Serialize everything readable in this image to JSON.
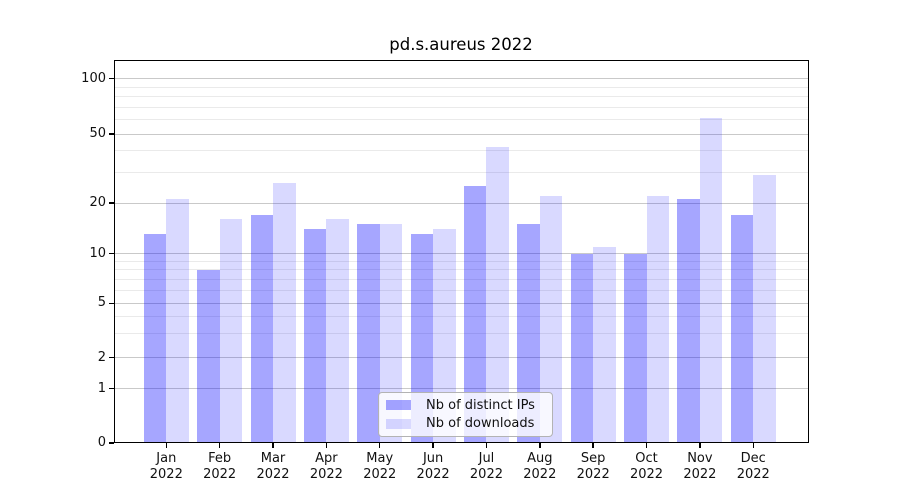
{
  "title": "pd.s.aureus 2022",
  "chart_data": {
    "type": "bar",
    "title": "pd.s.aureus 2022",
    "categories": [
      "Jan 2022",
      "Feb 2022",
      "Mar 2022",
      "Apr 2022",
      "May 2022",
      "Jun 2022",
      "Jul 2022",
      "Aug 2022",
      "Sep 2022",
      "Oct 2022",
      "Nov 2022",
      "Dec 2022"
    ],
    "series": [
      {
        "name": "Nb of distinct IPs",
        "color": "rgba(0,0,255,0.35)",
        "values": [
          13,
          8,
          17,
          14,
          15,
          13,
          25,
          15,
          10,
          10,
          21,
          17
        ]
      },
      {
        "name": "Nb of downloads",
        "color": "rgba(0,0,255,0.15)",
        "values": [
          21,
          16,
          26,
          16,
          15,
          14,
          42,
          22,
          11,
          22,
          61,
          29
        ]
      }
    ],
    "xlabel": "",
    "ylabel": "",
    "yscale": "symlog",
    "ylim": [
      0,
      112
    ],
    "yticks_major": [
      0,
      1,
      2,
      5,
      10,
      20,
      50,
      100
    ],
    "ytick_labels": [
      "0",
      "1",
      "2",
      "5",
      "10",
      "20",
      "50",
      "100"
    ],
    "yticks_minor": [
      3,
      4,
      6,
      7,
      8,
      9,
      30,
      40,
      60,
      70,
      80,
      90
    ],
    "grid": true,
    "legend_position": "lower center inside"
  },
  "colors": {
    "grid_major": "#c9c9c9",
    "grid_minor": "#eaeaea",
    "axis": "#000000",
    "text": "#111111",
    "legend_border": "#b3b3b3",
    "legend_bg": "rgba(255,255,255,0.8)"
  }
}
